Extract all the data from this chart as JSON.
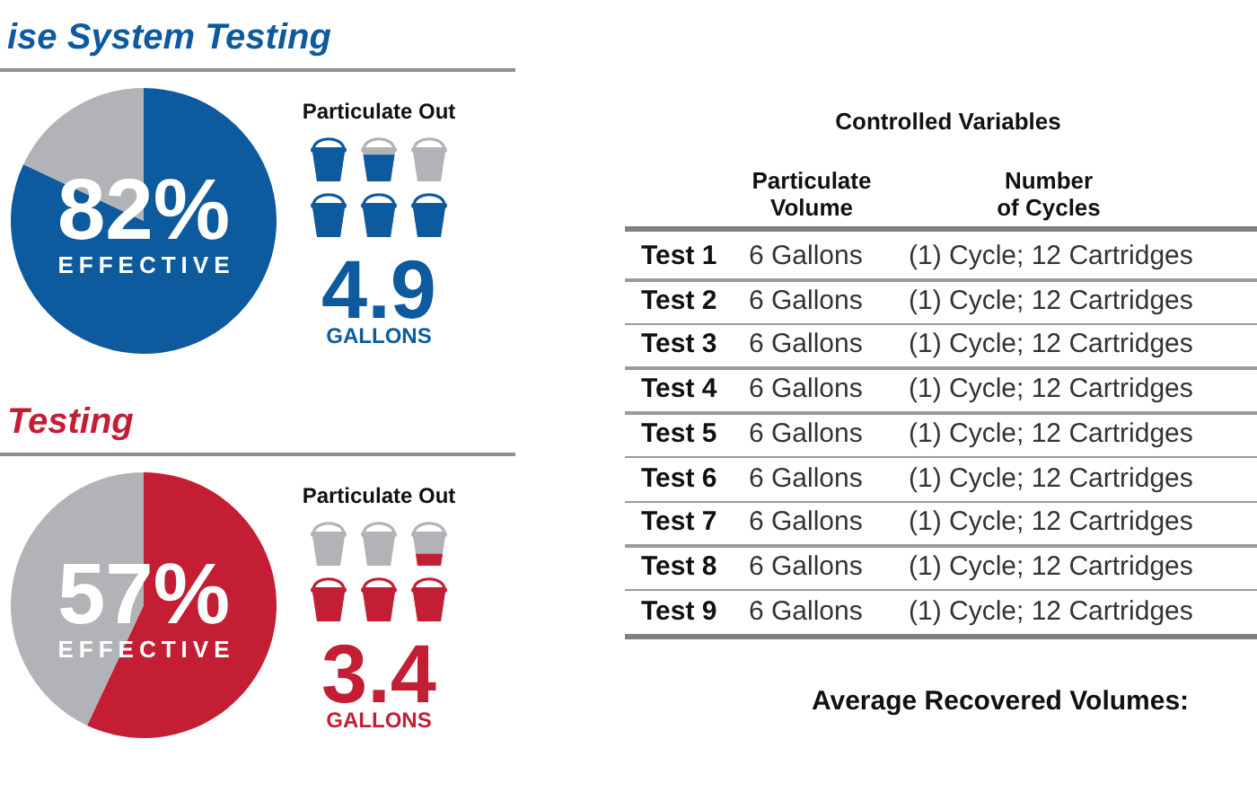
{
  "chart_data": [
    {
      "type": "pie",
      "title": "ise System Testing",
      "categories": [
        null,
        null
      ],
      "values": [
        82,
        18
      ],
      "colors": [
        "#0d5a9f",
        "#b1b3b6"
      ],
      "value_labels": [
        "82%",
        null
      ],
      "annotations": [
        "EFFECTIVE",
        "Particulate Out",
        "4.9",
        "GALLONS"
      ]
    },
    {
      "type": "pie",
      "title": "Testing",
      "categories": [
        null,
        null
      ],
      "values": [
        57,
        43
      ],
      "colors": [
        "#c41e35",
        "#b1b3b6"
      ],
      "value_labels": [
        "57%",
        null
      ],
      "annotations": [
        "EFFECTIVE",
        "Particulate Out",
        "3.4",
        "GALLONS"
      ]
    },
    {
      "type": "other",
      "title": "Controlled Variables",
      "categories": [
        "Test 1",
        "Test 2",
        "Test 3",
        "Test 4",
        "Test 5",
        "Test 6",
        "Test 7",
        "Test 8",
        "Test 9"
      ],
      "annotations": [
        "Particulate Volume",
        "Number of Cycles",
        "6 Gallons",
        "(1) Cycle; 12 Cartridges",
        "6 Gallons",
        "(1) Cycle; 12 Cartridges",
        "6 Gallons",
        "(1) Cycle; 12 Cartridges",
        "6 Gallons",
        "(1) Cycle; 12 Cartridges",
        "6 Gallons",
        "(1) Cycle; 12 Cartridges",
        "6 Gallons",
        "(1) Cycle; 12 Cartridges",
        "6 Gallons",
        "(1) Cycle; 12 Cartridges",
        "6 Gallons",
        "(1) Cycle; 12 Cartridges",
        "6 Gallons",
        "(1) Cycle; 12 Cartridges",
        "Average Recovered Volumes:"
      ]
    }
  ]
}
